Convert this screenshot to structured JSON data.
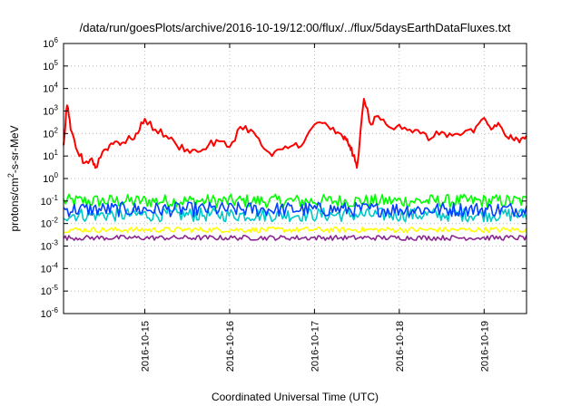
{
  "chart_data": {
    "type": "line",
    "title": "/data/run/goesPlots/archive/2016-10-19/12:00/flux/../flux/5daysEarthDataFluxes.txt",
    "xlabel": "Coordinated Universal Time (UTC)",
    "ylabel": "protons/cm²-s-sr-MeV",
    "ylabel_parts": {
      "pre": "protons/cm",
      "sup": "2",
      "post": "-s-sr-MeV"
    },
    "yscale": "log",
    "ylim": [
      1e-06,
      1000000.0
    ],
    "y_ticks": [
      {
        "value": 1e-06,
        "base": "10",
        "exp": "-6"
      },
      {
        "value": 1e-05,
        "base": "10",
        "exp": "-5"
      },
      {
        "value": 0.0001,
        "base": "10",
        "exp": "-4"
      },
      {
        "value": 0.001,
        "base": "10",
        "exp": "-3"
      },
      {
        "value": 0.01,
        "base": "10",
        "exp": "-2"
      },
      {
        "value": 0.1,
        "base": "10",
        "exp": "-1"
      },
      {
        "value": 1,
        "base": "10",
        "exp": "0"
      },
      {
        "value": 10,
        "base": "10",
        "exp": "1"
      },
      {
        "value": 100,
        "base": "10",
        "exp": "2"
      },
      {
        "value": 1000,
        "base": "10",
        "exp": "3"
      },
      {
        "value": 10000.0,
        "base": "10",
        "exp": "4"
      },
      {
        "value": 100000.0,
        "base": "10",
        "exp": "5"
      },
      {
        "value": 1000000.0,
        "base": "10",
        "exp": "6"
      }
    ],
    "xlim": [
      "2016-10-14T01:00",
      "2016-10-19T12:00"
    ],
    "x_ticks": [
      "2016-10-15",
      "2016-10-16",
      "2016-10-17",
      "2016-10-18",
      "2016-10-19"
    ],
    "grid": true,
    "series": [
      {
        "color": "#ff0000",
        "x": [
          "2016-10-14T01:00",
          "2016-10-14T02:00",
          "2016-10-14T03:00",
          "2016-10-14T05:00",
          "2016-10-14T07:00",
          "2016-10-14T09:00",
          "2016-10-14T10:00",
          "2016-10-14T12:00",
          "2016-10-14T14:00",
          "2016-10-14T16:00",
          "2016-10-14T18:00",
          "2016-10-14T20:00",
          "2016-10-14T22:00",
          "2016-10-15T00:00",
          "2016-10-15T03:00",
          "2016-10-15T06:00",
          "2016-10-15T09:00",
          "2016-10-15T12:00",
          "2016-10-15T15:00",
          "2016-10-15T18:00",
          "2016-10-15T21:00",
          "2016-10-16T00:00",
          "2016-10-16T03:00",
          "2016-10-16T06:00",
          "2016-10-16T09:00",
          "2016-10-16T12:00",
          "2016-10-16T15:00",
          "2016-10-16T18:00",
          "2016-10-16T21:00",
          "2016-10-17T00:00",
          "2016-10-17T03:00",
          "2016-10-17T06:00",
          "2016-10-17T08:00",
          "2016-10-17T09:00",
          "2016-10-17T10:00",
          "2016-10-17T11:00",
          "2016-10-17T12:00",
          "2016-10-17T14:00",
          "2016-10-17T16:00",
          "2016-10-17T18:00",
          "2016-10-17T21:00",
          "2016-10-18T00:00",
          "2016-10-18T03:00",
          "2016-10-18T06:00",
          "2016-10-18T09:00",
          "2016-10-18T12:00",
          "2016-10-18T15:00",
          "2016-10-18T18:00",
          "2016-10-18T21:00",
          "2016-10-19T00:00",
          "2016-10-19T02:00",
          "2016-10-19T04:00",
          "2016-10-19T06:00",
          "2016-10-19T08:00",
          "2016-10-19T10:00",
          "2016-10-19T12:00"
        ],
        "values": [
          30,
          1800,
          150,
          15,
          5,
          8,
          3,
          15,
          30,
          45,
          40,
          60,
          100,
          450,
          150,
          80,
          30,
          20,
          15,
          30,
          45,
          25,
          200,
          150,
          30,
          10,
          20,
          30,
          40,
          250,
          300,
          100,
          70,
          50,
          30,
          10,
          3,
          3500,
          250,
          600,
          200,
          250,
          150,
          100,
          60,
          120,
          80,
          100,
          110,
          500,
          150,
          300,
          80,
          60,
          40,
          80
        ]
      },
      {
        "color": "#00ff00",
        "band": [
          0.05,
          0.2
        ]
      },
      {
        "color": "#00c8c8",
        "band": [
          0.012,
          0.05
        ]
      },
      {
        "color": "#0040ff",
        "band": [
          0.02,
          0.09
        ]
      },
      {
        "color": "#ffff00",
        "band": [
          0.004,
          0.007
        ]
      },
      {
        "color": "#8b2590",
        "band": [
          0.0018,
          0.003
        ]
      }
    ]
  }
}
